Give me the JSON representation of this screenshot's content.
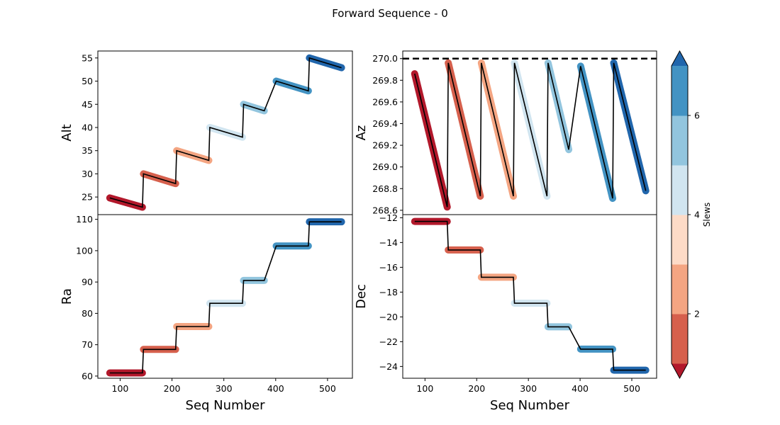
{
  "figure": {
    "title": "Forward Sequence - 0"
  },
  "colorbar": {
    "label": "Slews",
    "range": [
      1,
      7
    ],
    "colors": [
      "#b2182b",
      "#d6604d",
      "#f4a582",
      "#fddbc7",
      "#d1e5f0",
      "#92c5de",
      "#4393c3",
      "#2166ac"
    ],
    "ticks": [
      2,
      4,
      6
    ],
    "tick_labels": [
      "2",
      "4",
      "6"
    ]
  },
  "chart_data": [
    {
      "type": "line",
      "ylabel": "Alt",
      "xlabel": "",
      "xlim": [
        57,
        548
      ],
      "ylim": [
        21.2,
        56.5
      ],
      "yticks": [
        25,
        30,
        35,
        40,
        45,
        50,
        55
      ],
      "ytick_labels": [
        "25",
        "30",
        "35",
        "40",
        "45",
        "50",
        "55"
      ],
      "xticks": [],
      "xtick_labels": [],
      "segments": [
        {
          "slew": 1,
          "x": [
            80,
            143
          ],
          "y": [
            24.8,
            22.8
          ]
        },
        {
          "slew": 2,
          "x": [
            145,
            207
          ],
          "y": [
            30.0,
            27.9
          ]
        },
        {
          "slew": 3,
          "x": [
            209,
            271
          ],
          "y": [
            35.0,
            32.9
          ]
        },
        {
          "slew": 4,
          "x": [
            273,
            336
          ],
          "y": [
            40.0,
            37.9
          ]
        },
        {
          "slew": 5,
          "x": [
            338,
            378
          ],
          "y": [
            45.0,
            43.6
          ]
        },
        {
          "slew": 6,
          "x": [
            401,
            463
          ],
          "y": [
            50.0,
            47.9
          ]
        },
        {
          "slew": 7,
          "x": [
            465,
            527
          ],
          "y": [
            55.0,
            52.9
          ]
        }
      ]
    },
    {
      "type": "line",
      "ylabel": "Az",
      "xlabel": "",
      "xlim": [
        57,
        548
      ],
      "ylim": [
        268.56,
        270.07
      ],
      "yticks": [
        268.6,
        268.8,
        269.0,
        269.2,
        269.4,
        269.6,
        269.8,
        270.0
      ],
      "ytick_labels": [
        "268.6",
        "268.8",
        "269.0",
        "269.2",
        "269.4",
        "269.6",
        "269.8",
        "270.0"
      ],
      "xticks": [],
      "xtick_labels": [],
      "hline": 270.0,
      "segments": [
        {
          "slew": 1,
          "x": [
            80,
            143
          ],
          "y": [
            269.86,
            268.63
          ]
        },
        {
          "slew": 2,
          "x": [
            145,
            207
          ],
          "y": [
            269.96,
            268.73
          ]
        },
        {
          "slew": 3,
          "x": [
            209,
            271
          ],
          "y": [
            269.96,
            268.73
          ]
        },
        {
          "slew": 4,
          "x": [
            273,
            336
          ],
          "y": [
            269.96,
            268.73
          ]
        },
        {
          "slew": 5,
          "x": [
            338,
            378
          ],
          "y": [
            269.96,
            269.16
          ]
        },
        {
          "slew": 6,
          "x": [
            401,
            463
          ],
          "y": [
            269.93,
            268.71
          ]
        },
        {
          "slew": 7,
          "x": [
            465,
            527
          ],
          "y": [
            269.96,
            268.78
          ]
        }
      ]
    },
    {
      "type": "line",
      "ylabel": "Ra",
      "xlabel": "Seq Number",
      "xlim": [
        57,
        548
      ],
      "ylim": [
        59.3,
        111.5
      ],
      "yticks": [
        60,
        70,
        80,
        90,
        100,
        110
      ],
      "ytick_labels": [
        "60",
        "70",
        "80",
        "90",
        "100",
        "110"
      ],
      "xticks": [
        100,
        200,
        300,
        400,
        500
      ],
      "xtick_labels": [
        "100",
        "200",
        "300",
        "400",
        "500"
      ],
      "segments": [
        {
          "slew": 1,
          "x": [
            80,
            143
          ],
          "y": [
            61.0,
            61.0
          ]
        },
        {
          "slew": 2,
          "x": [
            145,
            207
          ],
          "y": [
            68.5,
            68.5
          ]
        },
        {
          "slew": 3,
          "x": [
            209,
            271
          ],
          "y": [
            75.8,
            75.8
          ]
        },
        {
          "slew": 4,
          "x": [
            273,
            336
          ],
          "y": [
            83.2,
            83.2
          ]
        },
        {
          "slew": 5,
          "x": [
            338,
            378
          ],
          "y": [
            90.5,
            90.5
          ]
        },
        {
          "slew": 6,
          "x": [
            401,
            463
          ],
          "y": [
            101.5,
            101.5
          ]
        },
        {
          "slew": 7,
          "x": [
            465,
            527
          ],
          "y": [
            109.2,
            109.2
          ]
        }
      ]
    },
    {
      "type": "line",
      "ylabel": "Dec",
      "xlabel": "Seq Number",
      "xlim": [
        57,
        548
      ],
      "ylim": [
        -24.95,
        -11.75
      ],
      "yticks": [
        -24,
        -22,
        -20,
        -18,
        -16,
        -14,
        -12
      ],
      "ytick_labels": [
        "−24",
        "−22",
        "−20",
        "−18",
        "−16",
        "−14",
        "−12"
      ],
      "xticks": [
        100,
        200,
        300,
        400,
        500
      ],
      "xtick_labels": [
        "100",
        "200",
        "300",
        "400",
        "500"
      ],
      "segments": [
        {
          "slew": 1,
          "x": [
            80,
            143
          ],
          "y": [
            -12.3,
            -12.3
          ]
        },
        {
          "slew": 2,
          "x": [
            145,
            207
          ],
          "y": [
            -14.6,
            -14.6
          ]
        },
        {
          "slew": 3,
          "x": [
            209,
            271
          ],
          "y": [
            -16.8,
            -16.8
          ]
        },
        {
          "slew": 4,
          "x": [
            273,
            336
          ],
          "y": [
            -18.9,
            -18.9
          ]
        },
        {
          "slew": 5,
          "x": [
            338,
            378
          ],
          "y": [
            -20.8,
            -20.8
          ]
        },
        {
          "slew": 6,
          "x": [
            401,
            463
          ],
          "y": [
            -22.6,
            -22.6
          ]
        },
        {
          "slew": 7,
          "x": [
            465,
            527
          ],
          "y": [
            -24.3,
            -24.3
          ]
        }
      ]
    }
  ]
}
